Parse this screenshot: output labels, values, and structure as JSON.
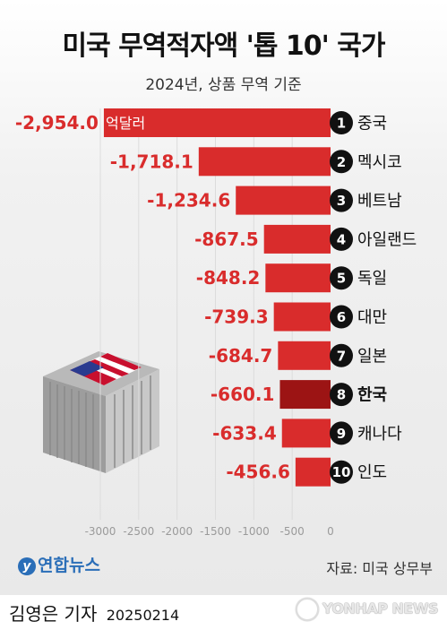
{
  "title": "미국 무역적자액 '톱 10' 국가",
  "subtitle": "2024년, 상품 무역 기준",
  "unit": "억달러",
  "source": "자료: 미국 상무부",
  "logo": "연합뉴스",
  "reporter": "김영은 기자",
  "date": "20250214",
  "watermark": "YONHAP NEWS",
  "colors": {
    "bar": "#d92c2c",
    "highlight_bar": "#9c1414",
    "value_text": "#d92c2c"
  },
  "chart_data": {
    "type": "bar",
    "orientation": "horizontal",
    "title": "미국 무역적자액 '톱 10' 국가",
    "subtitle": "2024년, 상품 무역 기준",
    "unit": "억달러",
    "xlim": [
      -3000,
      0
    ],
    "xticks": [
      -3000,
      -2500,
      -2000,
      -1500,
      -1000,
      -500,
      0
    ],
    "xtick_labels": [
      "-3000",
      "-2500",
      "-2000",
      "-1500",
      "-1000",
      "-500",
      "0"
    ],
    "highlight": "한국",
    "categories": [
      "중국",
      "멕시코",
      "베트남",
      "아일랜드",
      "독일",
      "대만",
      "일본",
      "한국",
      "캐나다",
      "인도"
    ],
    "ranks": [
      "1",
      "2",
      "3",
      "4",
      "5",
      "6",
      "7",
      "8",
      "9",
      "10"
    ],
    "values": [
      -2954.0,
      -1718.1,
      -1234.6,
      -867.5,
      -848.2,
      -739.3,
      -684.7,
      -660.1,
      -633.4,
      -456.6
    ],
    "value_labels": [
      "-2,954.0",
      "-1,718.1",
      "-1,234.6",
      "-867.5",
      "-848.2",
      "-739.3",
      "-684.7",
      "-660.1",
      "-633.4",
      "-456.6"
    ]
  }
}
